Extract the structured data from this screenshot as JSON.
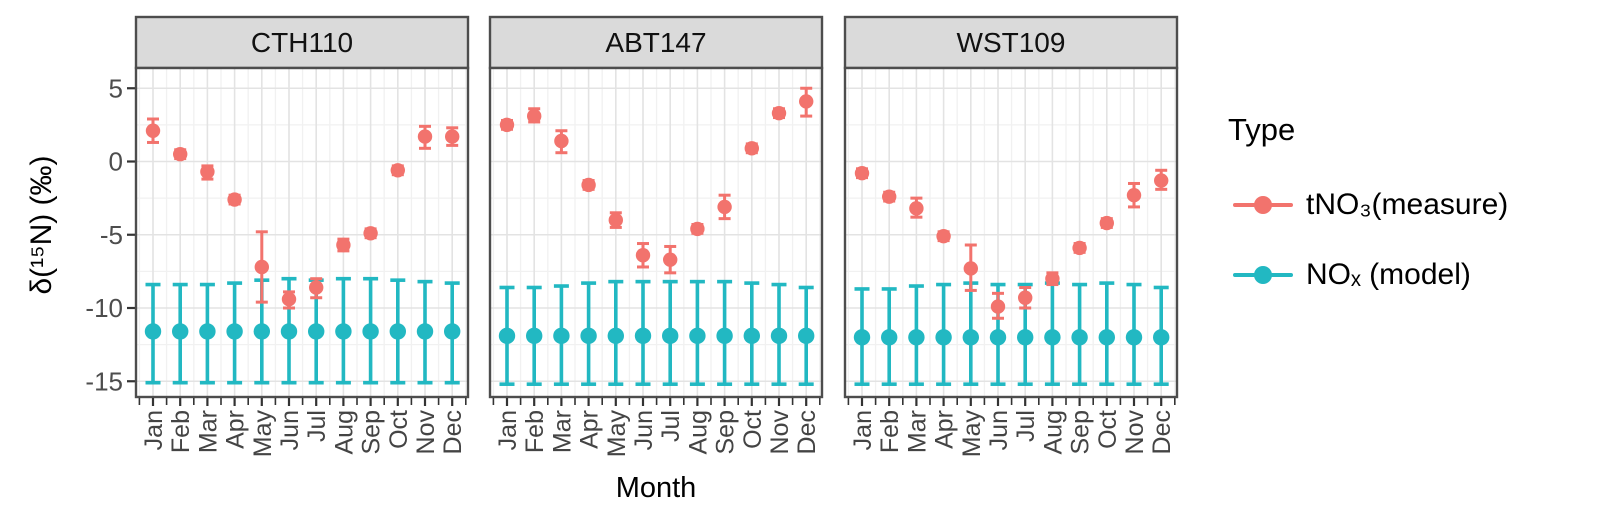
{
  "chart_data": {
    "type": "scatter",
    "title": "",
    "xlabel": "Month",
    "ylabel": "δ(¹⁵N) (‰)",
    "categories": [
      "Jan",
      "Feb",
      "Mar",
      "Apr",
      "May",
      "Jun",
      "Jul",
      "Aug",
      "Sep",
      "Oct",
      "Nov",
      "Dec"
    ],
    "yticks": [
      5,
      0,
      -5,
      -10,
      -15
    ],
    "yticks_minor": [
      2.5,
      -2.5,
      -7.5,
      -12.5
    ],
    "ylim": [
      -16.1,
      6.4
    ],
    "grid": "major+minor",
    "error_bars": true,
    "legend": {
      "title": "Type",
      "position": "right",
      "entries": [
        {
          "id": "measure",
          "label": "tNO₃(measure)",
          "color": "#F2736D"
        },
        {
          "id": "model",
          "label": "NOₓ (model)",
          "color": "#22B8C2"
        }
      ]
    },
    "panels": [
      {
        "title": "CTH110",
        "measure": {
          "values": [
            2.1,
            0.5,
            -0.7,
            -2.6,
            -7.2,
            -9.4,
            -8.6,
            -5.7,
            -4.9,
            -0.6,
            1.7,
            1.7
          ],
          "upper": [
            2.9,
            0.8,
            -0.3,
            -2.3,
            -4.8,
            -8.9,
            -8.0,
            -5.3,
            -4.6,
            -0.3,
            2.4,
            2.3
          ],
          "lower": [
            1.3,
            0.2,
            -1.2,
            -2.9,
            -9.6,
            -10.0,
            -9.3,
            -6.1,
            -5.2,
            -0.9,
            0.9,
            1.1
          ]
        },
        "model": {
          "values": [
            -11.6,
            -11.6,
            -11.6,
            -11.6,
            -11.6,
            -11.6,
            -11.6,
            -11.6,
            -11.6,
            -11.6,
            -11.6,
            -11.6
          ],
          "upper": [
            -8.4,
            -8.4,
            -8.4,
            -8.3,
            -8.1,
            -8.0,
            -8.1,
            -8.0,
            -8.0,
            -8.1,
            -8.2,
            -8.3
          ],
          "lower": [
            -15.1,
            -15.1,
            -15.1,
            -15.1,
            -15.1,
            -15.1,
            -15.1,
            -15.1,
            -15.1,
            -15.1,
            -15.1,
            -15.1
          ]
        }
      },
      {
        "title": "ABT147",
        "measure": {
          "values": [
            2.5,
            3.1,
            1.4,
            -1.6,
            -4.0,
            -6.4,
            -6.7,
            -4.6,
            -3.1,
            0.9,
            3.3,
            4.1
          ],
          "upper": [
            2.8,
            3.6,
            2.1,
            -1.3,
            -3.5,
            -5.6,
            -5.8,
            -4.3,
            -2.3,
            1.2,
            3.6,
            5.0
          ],
          "lower": [
            2.2,
            2.7,
            0.6,
            -1.9,
            -4.5,
            -7.2,
            -7.6,
            -4.9,
            -3.9,
            0.6,
            3.0,
            3.1
          ]
        },
        "model": {
          "values": [
            -11.9,
            -11.9,
            -11.9,
            -11.9,
            -11.9,
            -11.9,
            -11.9,
            -11.9,
            -11.9,
            -11.9,
            -11.9,
            -11.9
          ],
          "upper": [
            -8.6,
            -8.6,
            -8.5,
            -8.3,
            -8.2,
            -8.2,
            -8.2,
            -8.2,
            -8.2,
            -8.3,
            -8.4,
            -8.6
          ],
          "lower": [
            -15.2,
            -15.2,
            -15.2,
            -15.2,
            -15.2,
            -15.2,
            -15.2,
            -15.2,
            -15.2,
            -15.2,
            -15.2,
            -15.2
          ]
        }
      },
      {
        "title": "WST109",
        "measure": {
          "values": [
            -0.8,
            -2.4,
            -3.2,
            -5.1,
            -7.3,
            -9.9,
            -9.3,
            -8.0,
            -5.9,
            -4.2,
            -2.3,
            -1.3
          ],
          "upper": [
            -0.5,
            -2.1,
            -2.5,
            -4.8,
            -5.7,
            -9.0,
            -8.6,
            -7.6,
            -5.6,
            -3.9,
            -1.5,
            -0.6
          ],
          "lower": [
            -1.1,
            -2.7,
            -3.8,
            -5.4,
            -8.8,
            -10.7,
            -10.0,
            -8.4,
            -6.2,
            -4.5,
            -3.1,
            -1.9
          ]
        },
        "model": {
          "values": [
            -12.0,
            -12.0,
            -12.0,
            -12.0,
            -12.0,
            -12.0,
            -12.0,
            -12.0,
            -12.0,
            -12.0,
            -12.0,
            -12.0
          ],
          "upper": [
            -8.7,
            -8.7,
            -8.5,
            -8.4,
            -8.3,
            -8.4,
            -8.4,
            -8.3,
            -8.4,
            -8.3,
            -8.4,
            -8.6
          ],
          "lower": [
            -15.2,
            -15.2,
            -15.2,
            -15.2,
            -15.2,
            -15.2,
            -15.2,
            -15.2,
            -15.2,
            -15.2,
            -15.2,
            -15.2
          ]
        }
      }
    ],
    "colors": {
      "header_bg": "#DADADA",
      "panel_border": "#4D4D4D",
      "panel_bg": "#FFFFFF",
      "grid_major": "#E3E3E3",
      "grid_minor": "#F1F1F1",
      "tick": "#333333",
      "tick_label": "#4D4D4D",
      "month_label": "#444444",
      "facet_title": "#111111"
    }
  }
}
